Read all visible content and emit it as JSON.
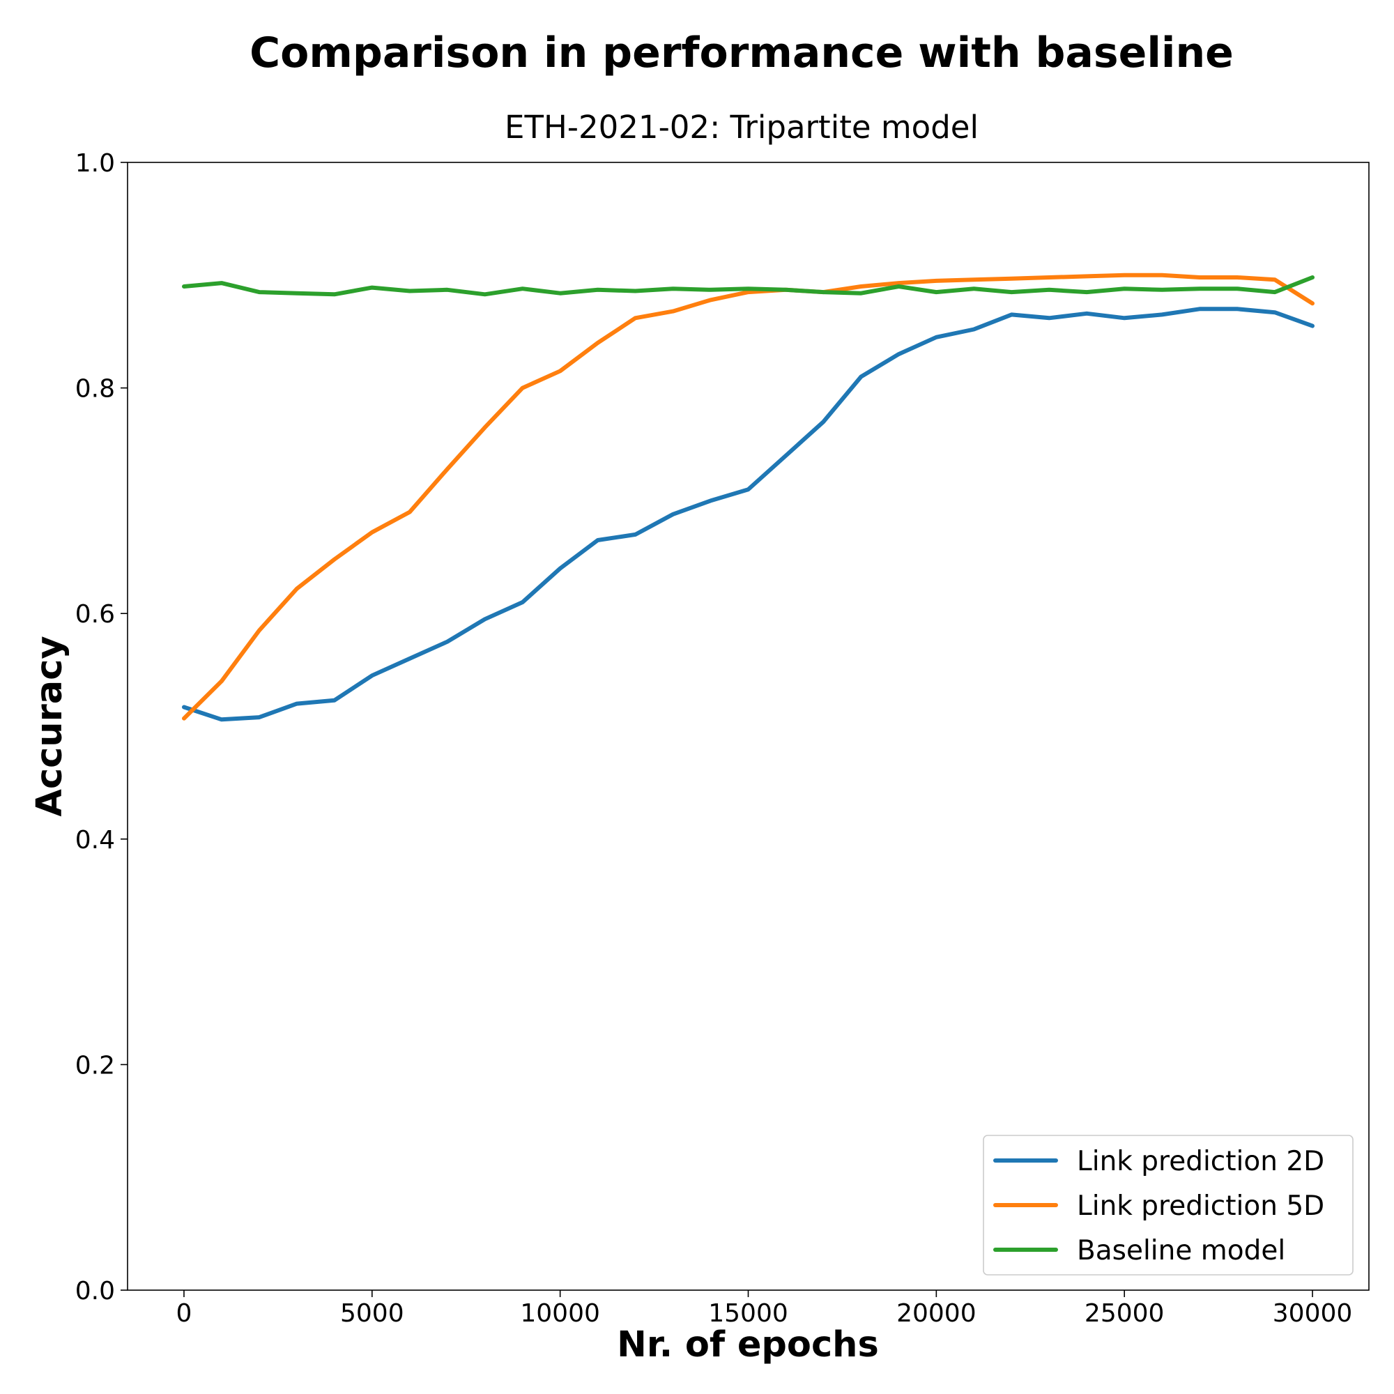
{
  "chart_data": {
    "type": "line",
    "title": "Comparison in performance with baseline",
    "subtitle": "ETH-2021-02: Tripartite model",
    "xlabel": "Nr. of epochs",
    "ylabel": "Accuracy",
    "xlim": [
      -1500,
      31500
    ],
    "ylim": [
      0.0,
      1.0
    ],
    "xticks": [
      0,
      5000,
      10000,
      15000,
      20000,
      25000,
      30000
    ],
    "xtick_labels": [
      "0",
      "5000",
      "10000",
      "15000",
      "20000",
      "25000",
      "30000"
    ],
    "yticks": [
      0.0,
      0.2,
      0.4,
      0.6,
      0.8,
      1.0
    ],
    "ytick_labels": [
      "0.0",
      "0.2",
      "0.4",
      "0.6",
      "0.8",
      "1.0"
    ],
    "grid": false,
    "legend_position": "bottom-right",
    "x": [
      0,
      1000,
      2000,
      3000,
      4000,
      5000,
      6000,
      7000,
      8000,
      9000,
      10000,
      11000,
      12000,
      13000,
      14000,
      15000,
      16000,
      17000,
      18000,
      19000,
      20000,
      21000,
      22000,
      23000,
      24000,
      25000,
      26000,
      27000,
      28000,
      29000,
      30000
    ],
    "series": [
      {
        "name": "Link prediction 2D",
        "color": "#1f77b4",
        "values": [
          0.517,
          0.506,
          0.508,
          0.52,
          0.523,
          0.545,
          0.56,
          0.575,
          0.595,
          0.61,
          0.64,
          0.665,
          0.67,
          0.688,
          0.7,
          0.71,
          0.74,
          0.77,
          0.81,
          0.83,
          0.845,
          0.852,
          0.865,
          0.862,
          0.866,
          0.862,
          0.865,
          0.87,
          0.87,
          0.867,
          0.855
        ]
      },
      {
        "name": "Link prediction 5D",
        "color": "#ff7f0e",
        "values": [
          0.507,
          0.54,
          0.585,
          0.622,
          0.648,
          0.672,
          0.69,
          0.728,
          0.765,
          0.8,
          0.815,
          0.84,
          0.862,
          0.868,
          0.878,
          0.885,
          0.887,
          0.885,
          0.89,
          0.893,
          0.895,
          0.896,
          0.897,
          0.898,
          0.899,
          0.9,
          0.9,
          0.898,
          0.898,
          0.896,
          0.875
        ]
      },
      {
        "name": "Baseline model",
        "color": "#2ca02c",
        "values": [
          0.89,
          0.893,
          0.885,
          0.884,
          0.883,
          0.889,
          0.886,
          0.887,
          0.883,
          0.888,
          0.884,
          0.887,
          0.886,
          0.888,
          0.887,
          0.888,
          0.887,
          0.885,
          0.884,
          0.89,
          0.885,
          0.888,
          0.885,
          0.887,
          0.885,
          0.888,
          0.887,
          0.888,
          0.888,
          0.885,
          0.898
        ]
      }
    ]
  }
}
